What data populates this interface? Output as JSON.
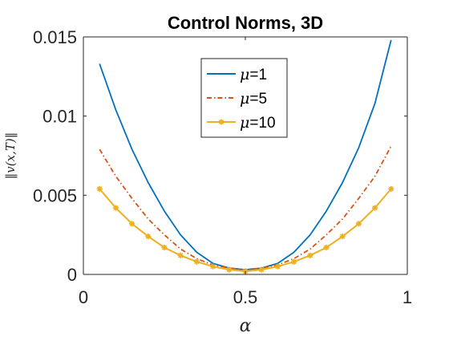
{
  "chart_data": {
    "type": "line",
    "title": "Control Norms, 3D",
    "xlabel": "α",
    "ylabel": "‖v(x,T)‖",
    "xlim": [
      0,
      1
    ],
    "ylim": [
      0,
      0.015
    ],
    "xticks": [
      0,
      0.5,
      1
    ],
    "xtick_labels": [
      "0",
      "0.5",
      "1"
    ],
    "yticks": [
      0,
      0.005,
      0.01,
      0.015
    ],
    "ytick_labels": [
      "0",
      "0.005",
      "0.01",
      "0.015"
    ],
    "grid": false,
    "legend_position": "top-center",
    "legend_prefix": "μ",
    "x": [
      0.05,
      0.1,
      0.15,
      0.2,
      0.25,
      0.3,
      0.35,
      0.4,
      0.45,
      0.5,
      0.55,
      0.6,
      0.65,
      0.7,
      0.75,
      0.8,
      0.85,
      0.9,
      0.95
    ],
    "series": [
      {
        "name": "=1",
        "color": "#0072BD",
        "style": "solid",
        "marker": "none",
        "values": [
          0.0133,
          0.0104,
          0.0079,
          0.0058,
          0.004,
          0.0025,
          0.0014,
          0.0007,
          0.0004,
          0.0003,
          0.0004,
          0.0007,
          0.0014,
          0.0025,
          0.004,
          0.0058,
          0.008,
          0.0108,
          0.0148
        ]
      },
      {
        "name": "=5",
        "color": "#D95319",
        "style": "dashdot",
        "marker": "none",
        "values": [
          0.0079,
          0.0062,
          0.0048,
          0.0035,
          0.0025,
          0.0016,
          0.001,
          0.0006,
          0.0004,
          0.0003,
          0.0004,
          0.0006,
          0.001,
          0.0016,
          0.0025,
          0.0035,
          0.0048,
          0.0062,
          0.0081
        ]
      },
      {
        "name": "=10",
        "color": "#EDB120",
        "style": "solid",
        "marker": "asterisk",
        "values": [
          0.0054,
          0.0042,
          0.0032,
          0.0024,
          0.0017,
          0.0012,
          0.0008,
          0.0005,
          0.0003,
          0.0002,
          0.0003,
          0.0005,
          0.0008,
          0.0012,
          0.0017,
          0.0024,
          0.0032,
          0.0042,
          0.0054
        ]
      }
    ]
  }
}
